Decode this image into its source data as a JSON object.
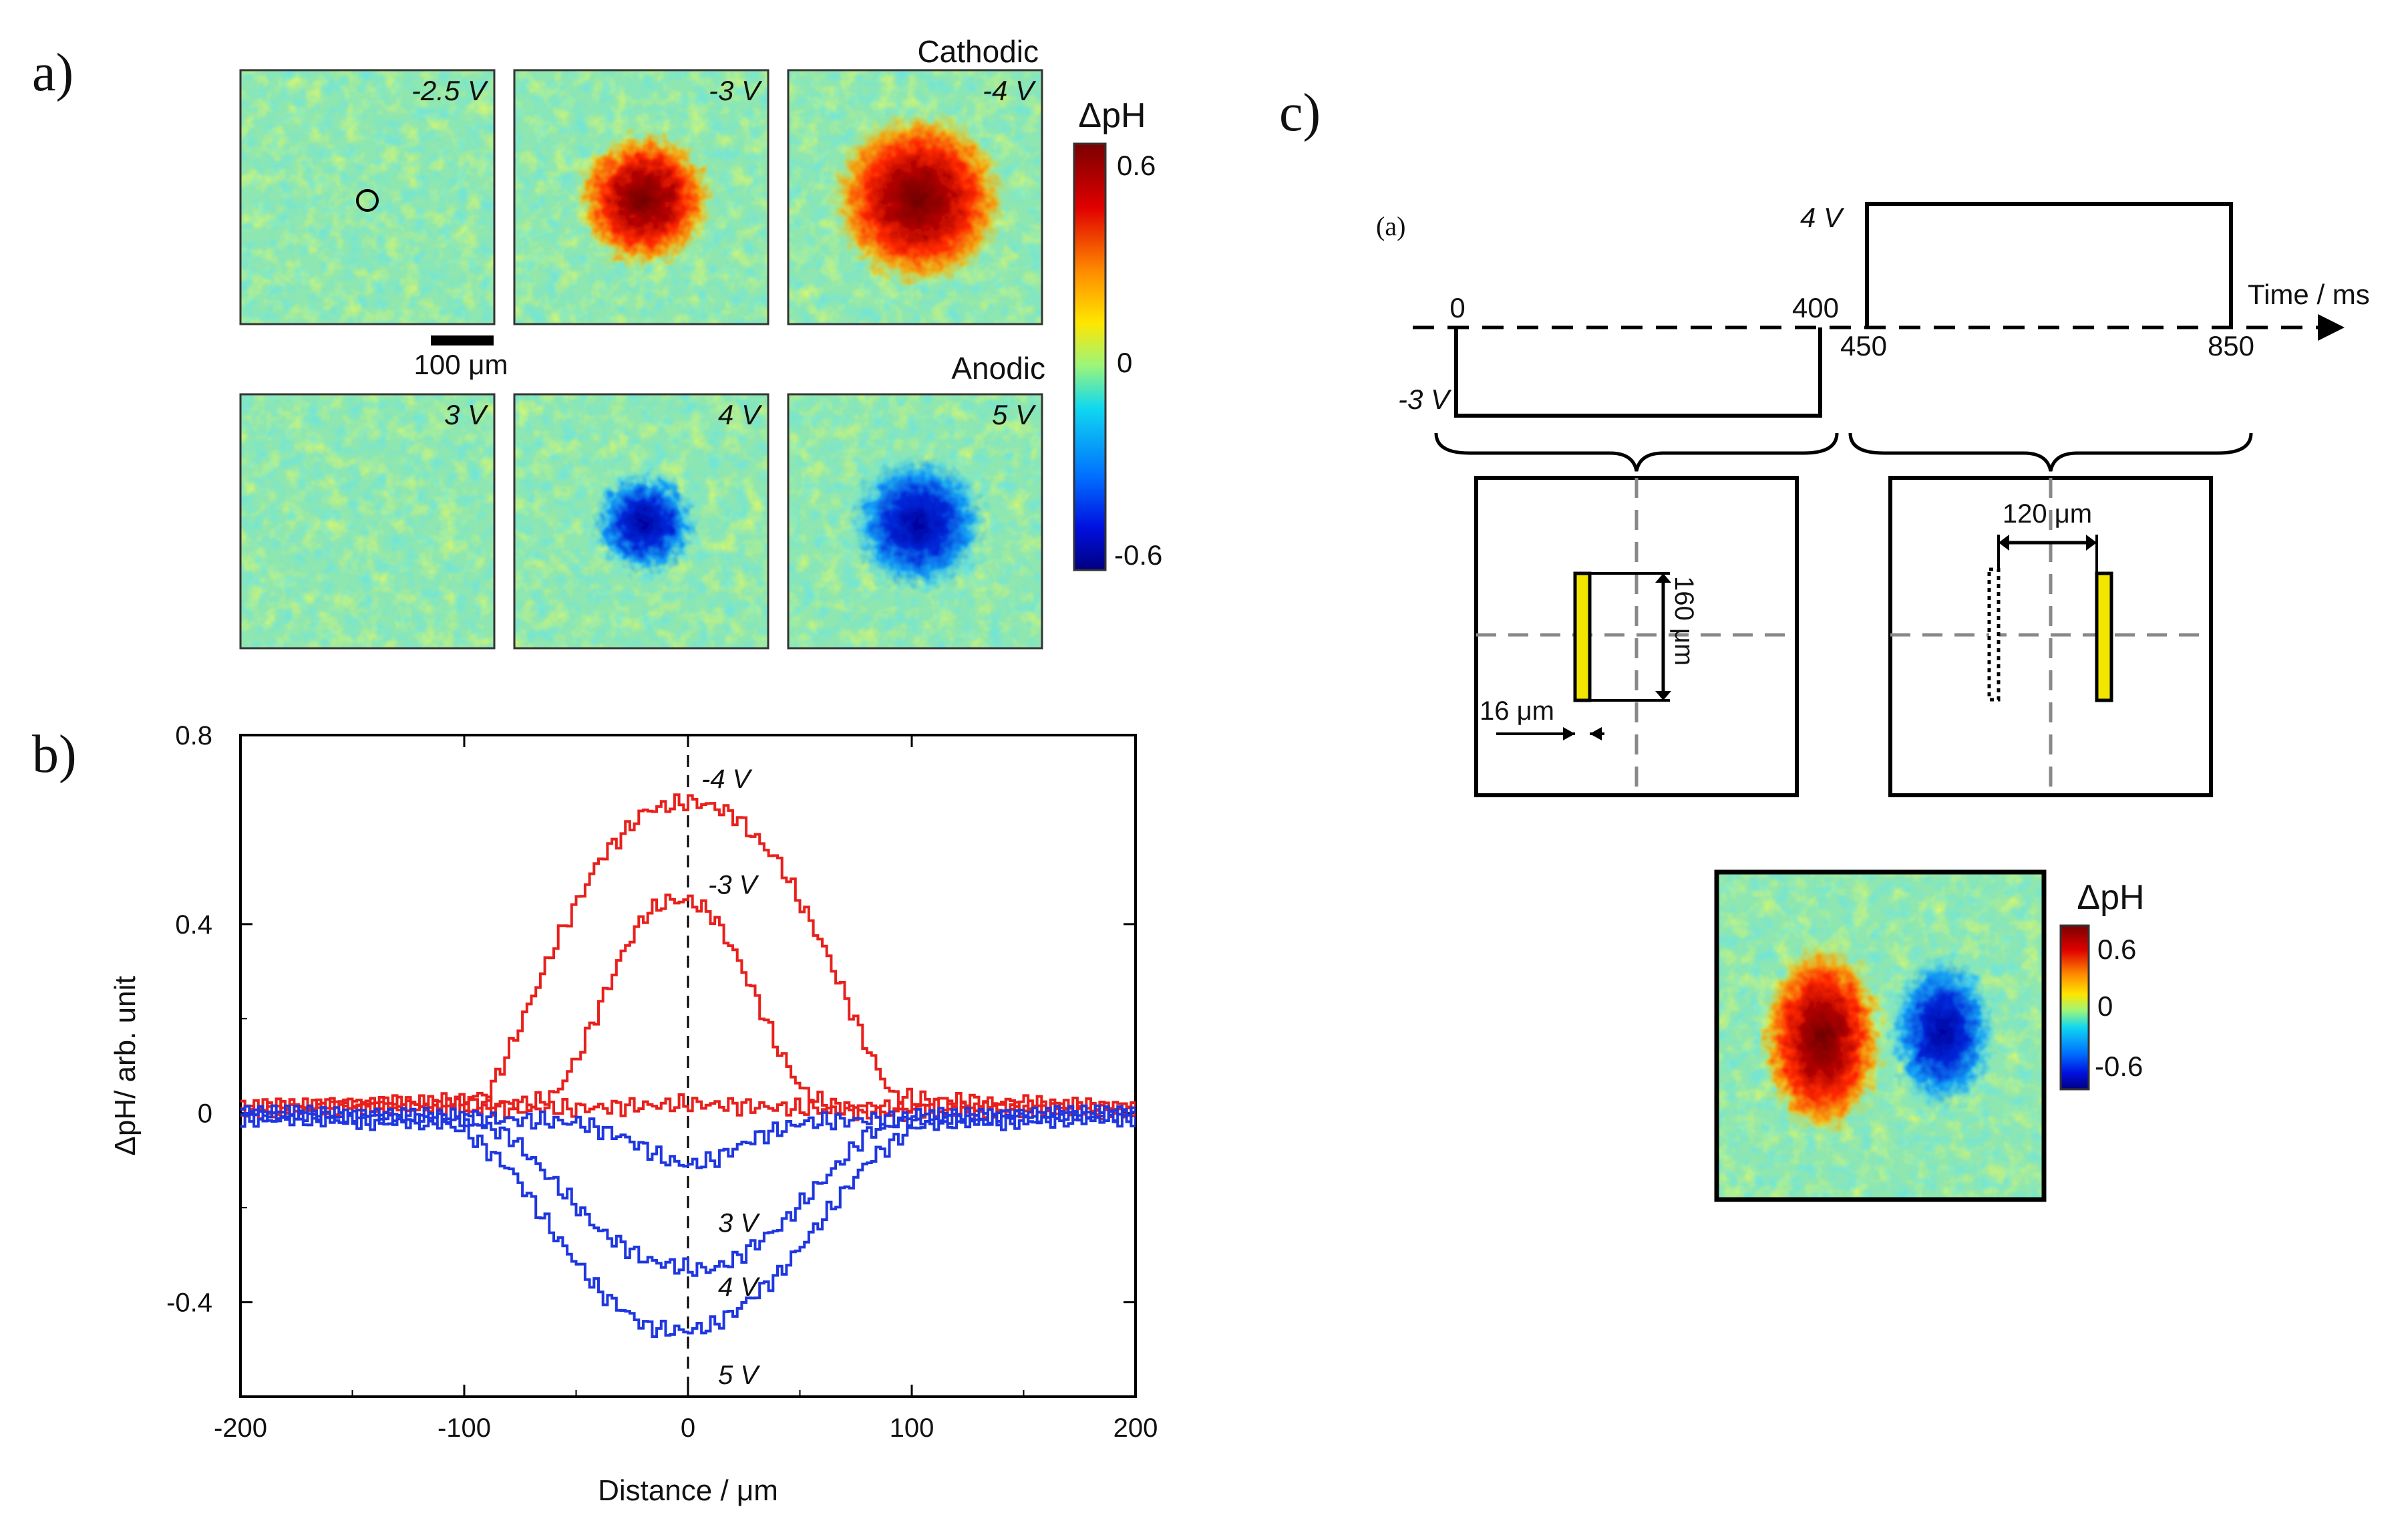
{
  "panels": {
    "a": {
      "letter": "a)",
      "cathodic_label": "Cathodic",
      "anodic_label": "Anodic",
      "scale_bar_label": "100 μm",
      "colorbar": {
        "title": "ΔpH",
        "ticks": [
          "0.6",
          "0",
          "-0.6"
        ],
        "colors": [
          "#7a0000",
          "#ff2a00",
          "#ffd200",
          "#8cf08c",
          "#00c8ff",
          "#0046ff",
          "#00008c"
        ]
      },
      "maps": [
        {
          "voltage": "-2.5 V",
          "type": "none",
          "intensity": 0,
          "marker": "circle"
        },
        {
          "voltage": "-3 V",
          "type": "cathodic",
          "intensity": 0.45
        },
        {
          "voltage": "-4 V",
          "type": "cathodic",
          "intensity": 0.65
        },
        {
          "voltage": "3 V",
          "type": "none",
          "intensity": 0
        },
        {
          "voltage": "4 V",
          "type": "anodic",
          "intensity": 0.3
        },
        {
          "voltage": "5 V",
          "type": "anodic",
          "intensity": 0.47
        }
      ]
    },
    "b": {
      "letter": "b)"
    },
    "c": {
      "letter": "c)",
      "sub_label": "(a)",
      "timing": {
        "axis_label": "Time / ms",
        "level_high": "4 V",
        "level_low": "-3 V",
        "time_ticks": [
          "0",
          "400",
          "450",
          "850"
        ]
      },
      "electrode_left": {
        "height_label": "160 μm",
        "width_label": "16 μm"
      },
      "electrode_right": {
        "separation_label": "120 μm"
      },
      "map_colorbar": {
        "title": "ΔpH",
        "ticks": [
          "0.6",
          "0",
          "-0.6"
        ]
      }
    }
  },
  "chart_data": {
    "type": "line",
    "title": "",
    "xlabel": "Distance / μm",
    "ylabel": "ΔpH/ arb. unit",
    "xlim": [
      -200,
      200
    ],
    "ylim": [
      -0.6,
      0.8
    ],
    "xticks": [
      -200,
      -100,
      0,
      100,
      200
    ],
    "yticks": [
      0.8,
      0.4,
      0,
      -0.4
    ],
    "xtick_labels": [
      "-200",
      "-100",
      "0",
      "100",
      "200"
    ],
    "ytick_labels": [
      "0.8",
      "0.4",
      "0",
      "-0.4"
    ],
    "reference_line": {
      "x": 0,
      "style": "dashed"
    },
    "series": [
      {
        "name": "-4 V",
        "color": "#e8201c",
        "label": "-4 V",
        "x": [
          -200,
          -120,
          -100,
          -90,
          -80,
          -60,
          -40,
          -20,
          0,
          10,
          20,
          40,
          60,
          80,
          90,
          100,
          200
        ],
        "y": [
          0.01,
          0.02,
          0.03,
          0.04,
          0.14,
          0.36,
          0.54,
          0.64,
          0.66,
          0.65,
          0.63,
          0.53,
          0.35,
          0.13,
          0.04,
          0.03,
          0.01
        ]
      },
      {
        "name": "-3 V",
        "color": "#e8201c",
        "label": "-3 V",
        "x": [
          -200,
          -100,
          -70,
          -60,
          -50,
          -40,
          -30,
          -20,
          -10,
          0,
          10,
          20,
          30,
          40,
          50,
          60,
          70,
          200
        ],
        "y": [
          0.01,
          0.02,
          0.02,
          0.04,
          0.12,
          0.23,
          0.34,
          0.42,
          0.45,
          0.45,
          0.42,
          0.34,
          0.24,
          0.13,
          0.05,
          0.02,
          0.01,
          0.01
        ]
      },
      {
        "name": "-2.5 V",
        "color": "#e8201c",
        "x": [
          -200,
          -150,
          -100,
          -50,
          0,
          50,
          100,
          150,
          200
        ],
        "y": [
          0.0,
          0.02,
          0.01,
          0.01,
          0.02,
          0.01,
          0.0,
          0.01,
          0.0
        ]
      },
      {
        "name": "3 V",
        "color": "#1f37e0",
        "label": "3 V",
        "x": [
          -200,
          -100,
          -50,
          -30,
          -10,
          0,
          10,
          30,
          50,
          100,
          200
        ],
        "y": [
          0.0,
          -0.01,
          -0.02,
          -0.05,
          -0.1,
          -0.11,
          -0.1,
          -0.05,
          -0.02,
          -0.01,
          0.0
        ]
      },
      {
        "name": "4 V",
        "color": "#1f37e0",
        "label": "4 V",
        "x": [
          -200,
          -100,
          -80,
          -60,
          -40,
          -20,
          0,
          10,
          20,
          40,
          60,
          80,
          100,
          200
        ],
        "y": [
          0.0,
          -0.01,
          -0.05,
          -0.15,
          -0.25,
          -0.31,
          -0.33,
          -0.33,
          -0.31,
          -0.24,
          -0.14,
          -0.04,
          -0.01,
          0.0
        ]
      },
      {
        "name": "5 V",
        "color": "#1f37e0",
        "label": "5 V",
        "x": [
          -200,
          -110,
          -100,
          -80,
          -60,
          -40,
          -20,
          -10,
          0,
          10,
          20,
          40,
          60,
          80,
          100,
          110,
          200
        ],
        "y": [
          -0.01,
          -0.02,
          -0.04,
          -0.12,
          -0.26,
          -0.38,
          -0.45,
          -0.46,
          -0.46,
          -0.45,
          -0.42,
          -0.34,
          -0.22,
          -0.1,
          -0.03,
          -0.02,
          -0.01
        ]
      }
    ]
  }
}
